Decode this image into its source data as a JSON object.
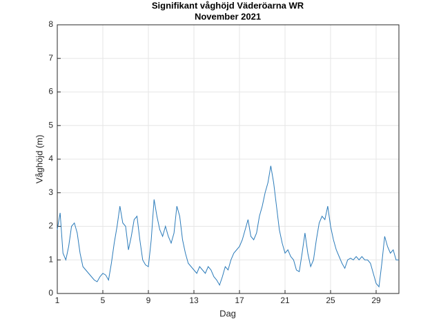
{
  "chart_data": {
    "type": "line",
    "title": "Signifikant våghöjd Väderöarna WR",
    "subtitle": "November 2021",
    "xlabel": "Dag",
    "ylabel": "Våghöjd (m)",
    "color": "#2b7bba",
    "grid": true,
    "xlim": [
      1,
      31
    ],
    "ylim": [
      0,
      8
    ],
    "xticks": [
      1,
      5,
      9,
      13,
      17,
      21,
      25,
      29
    ],
    "yticks": [
      0,
      1,
      2,
      3,
      4,
      5,
      6,
      7,
      8
    ],
    "x": [
      1,
      1.25,
      1.5,
      1.75,
      2,
      2.25,
      2.5,
      2.75,
      3,
      3.25,
      3.5,
      3.75,
      4,
      4.25,
      4.5,
      4.75,
      5,
      5.25,
      5.5,
      5.75,
      6,
      6.25,
      6.5,
      6.75,
      7,
      7.25,
      7.5,
      7.75,
      8,
      8.25,
      8.5,
      8.75,
      9,
      9.25,
      9.5,
      9.75,
      10,
      10.25,
      10.5,
      10.75,
      11,
      11.25,
      11.5,
      11.75,
      12,
      12.25,
      12.5,
      12.75,
      13,
      13.25,
      13.5,
      13.75,
      14,
      14.25,
      14.5,
      14.75,
      15,
      15.25,
      15.5,
      15.75,
      16,
      16.25,
      16.5,
      16.75,
      17,
      17.25,
      17.5,
      17.75,
      18,
      18.25,
      18.5,
      18.75,
      19,
      19.25,
      19.5,
      19.75,
      20,
      20.25,
      20.5,
      20.75,
      21,
      21.25,
      21.5,
      21.75,
      22,
      22.25,
      22.5,
      22.75,
      23,
      23.25,
      23.5,
      23.75,
      24,
      24.25,
      24.5,
      24.75,
      25,
      25.25,
      25.5,
      25.75,
      26,
      26.25,
      26.5,
      26.75,
      27,
      27.25,
      27.5,
      27.75,
      28,
      28.25,
      28.5,
      28.75,
      29,
      29.25,
      29.5,
      29.75,
      30,
      30.25,
      30.5,
      30.75,
      31
    ],
    "values": [
      1.9,
      2.4,
      1.2,
      1.0,
      1.4,
      2.0,
      2.1,
      1.8,
      1.2,
      0.8,
      0.7,
      0.6,
      0.5,
      0.4,
      0.35,
      0.5,
      0.6,
      0.55,
      0.4,
      0.9,
      1.5,
      2.0,
      2.6,
      2.1,
      2.0,
      1.3,
      1.7,
      2.2,
      2.3,
      1.6,
      1.0,
      0.85,
      0.8,
      1.6,
      2.8,
      2.3,
      1.9,
      1.7,
      2.0,
      1.7,
      1.5,
      1.8,
      2.6,
      2.3,
      1.6,
      1.2,
      0.9,
      0.8,
      0.7,
      0.6,
      0.8,
      0.7,
      0.6,
      0.8,
      0.7,
      0.5,
      0.4,
      0.25,
      0.5,
      0.8,
      0.7,
      1.0,
      1.2,
      1.3,
      1.4,
      1.6,
      1.9,
      2.2,
      1.7,
      1.6,
      1.8,
      2.3,
      2.6,
      3.0,
      3.3,
      3.8,
      3.3,
      2.6,
      1.9,
      1.5,
      1.2,
      1.3,
      1.1,
      1.0,
      0.7,
      0.65,
      1.2,
      1.8,
      1.2,
      0.8,
      1.0,
      1.6,
      2.1,
      2.3,
      2.2,
      2.6,
      2.0,
      1.6,
      1.3,
      1.1,
      0.9,
      0.75,
      1.0,
      1.05,
      1.0,
      1.1,
      1.0,
      1.1,
      1.0,
      1.0,
      0.9,
      0.6,
      0.3,
      0.2,
      0.9,
      1.7,
      1.4,
      1.2,
      1.3,
      1.0,
      1.0
    ]
  }
}
